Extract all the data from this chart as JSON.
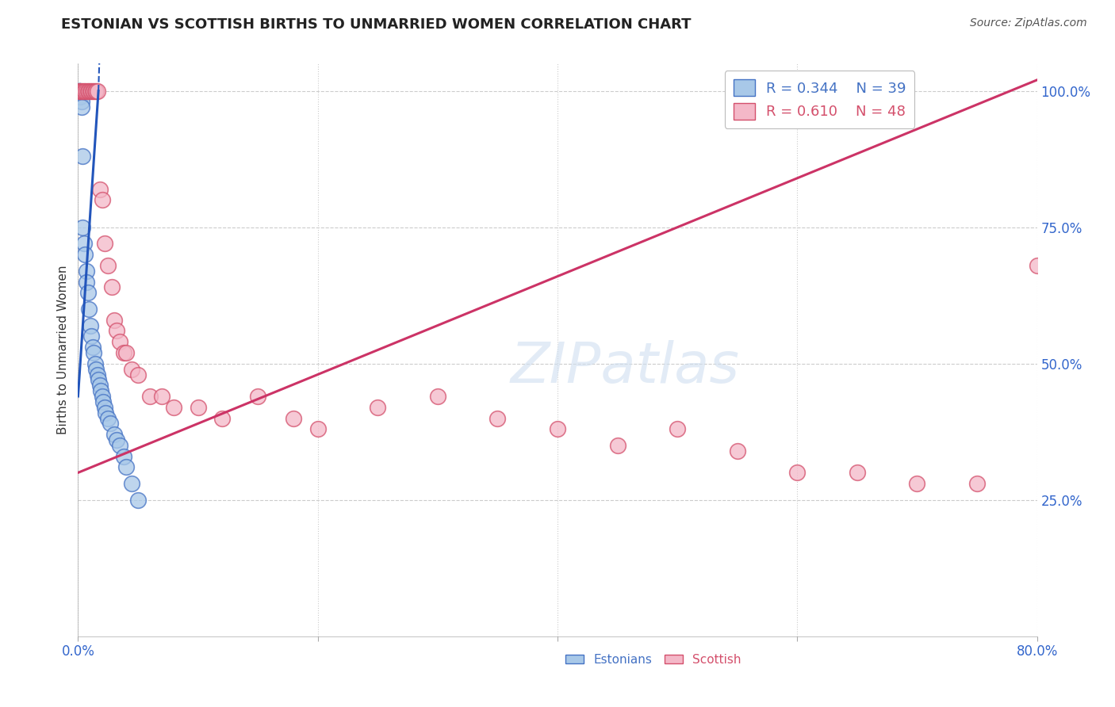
{
  "title": "ESTONIAN VS SCOTTISH BIRTHS TO UNMARRIED WOMEN CORRELATION CHART",
  "source": "Source: ZipAtlas.com",
  "ylabel": "Births to Unmarried Women",
  "xlim": [
    0.0,
    0.8
  ],
  "ylim": [
    0.0,
    1.05
  ],
  "xtick_positions": [
    0.0,
    0.2,
    0.4,
    0.6,
    0.8
  ],
  "xticklabels": [
    "0.0%",
    "",
    "",
    "",
    "80.0%"
  ],
  "ytick_positions": [
    0.25,
    0.5,
    0.75,
    1.0
  ],
  "ytick_labels": [
    "25.0%",
    "50.0%",
    "75.0%",
    "100.0%"
  ],
  "grid_color": "#cccccc",
  "background_color": "#ffffff",
  "estonian_face_color": "#a8c8e8",
  "estonian_edge_color": "#4472c4",
  "scottish_face_color": "#f4b8c8",
  "scottish_edge_color": "#d4506c",
  "estonian_R": 0.344,
  "estonian_N": 39,
  "scottish_R": 0.61,
  "scottish_N": 48,
  "estonian_line_color": "#2255bb",
  "scottish_line_color": "#cc3366",
  "tick_label_color": "#3366cc",
  "title_color": "#222222",
  "source_color": "#555555",
  "ylabel_color": "#333333",
  "watermark_color": "#d0dff0",
  "legend_edge_color": "#bbbbbb",
  "estonian_x": [
    0.0,
    0.001,
    0.001,
    0.001,
    0.002,
    0.002,
    0.003,
    0.003,
    0.004,
    0.004,
    0.005,
    0.006,
    0.007,
    0.007,
    0.008,
    0.009,
    0.01,
    0.011,
    0.012,
    0.013,
    0.014,
    0.015,
    0.016,
    0.017,
    0.018,
    0.019,
    0.02,
    0.021,
    0.022,
    0.023,
    0.025,
    0.027,
    0.03,
    0.032,
    0.035,
    0.038,
    0.04,
    0.045,
    0.05
  ],
  "estonian_y": [
    1.0,
    1.0,
    1.0,
    1.0,
    1.0,
    0.99,
    0.98,
    0.97,
    0.88,
    0.75,
    0.72,
    0.7,
    0.67,
    0.65,
    0.63,
    0.6,
    0.57,
    0.55,
    0.53,
    0.52,
    0.5,
    0.49,
    0.48,
    0.47,
    0.46,
    0.45,
    0.44,
    0.43,
    0.42,
    0.41,
    0.4,
    0.39,
    0.37,
    0.36,
    0.35,
    0.33,
    0.31,
    0.28,
    0.25
  ],
  "scottish_x": [
    0.001,
    0.002,
    0.003,
    0.004,
    0.005,
    0.006,
    0.007,
    0.008,
    0.009,
    0.01,
    0.011,
    0.012,
    0.013,
    0.014,
    0.015,
    0.016,
    0.018,
    0.02,
    0.022,
    0.025,
    0.028,
    0.03,
    0.032,
    0.035,
    0.038,
    0.04,
    0.045,
    0.05,
    0.06,
    0.07,
    0.08,
    0.1,
    0.12,
    0.15,
    0.18,
    0.2,
    0.25,
    0.3,
    0.35,
    0.4,
    0.45,
    0.5,
    0.55,
    0.6,
    0.65,
    0.7,
    0.75,
    0.8
  ],
  "scottish_y": [
    1.0,
    1.0,
    1.0,
    1.0,
    1.0,
    1.0,
    1.0,
    1.0,
    1.0,
    1.0,
    1.0,
    1.0,
    1.0,
    1.0,
    1.0,
    1.0,
    0.82,
    0.8,
    0.72,
    0.68,
    0.64,
    0.58,
    0.56,
    0.54,
    0.52,
    0.52,
    0.49,
    0.48,
    0.44,
    0.44,
    0.42,
    0.42,
    0.4,
    0.44,
    0.4,
    0.38,
    0.42,
    0.44,
    0.4,
    0.38,
    0.35,
    0.38,
    0.34,
    0.3,
    0.3,
    0.28,
    0.28,
    0.68
  ],
  "est_line_x0": 0.0,
  "est_line_y0": 0.44,
  "est_line_x1": 0.017,
  "est_line_y1": 1.0,
  "est_line_xdash0": 0.017,
  "est_line_ydash0": 1.0,
  "est_line_xdash1": 0.022,
  "est_line_ydash1": 1.35,
  "sco_line_x0": 0.0,
  "sco_line_y0": 0.3,
  "sco_line_x1": 0.8,
  "sco_line_y1": 1.02
}
